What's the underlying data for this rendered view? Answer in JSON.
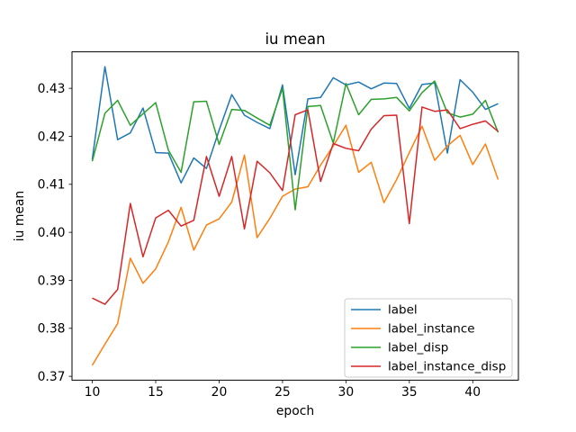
{
  "chart_data": {
    "type": "line",
    "title": "iu mean",
    "xlabel": "epoch",
    "ylabel": "iu mean",
    "background": "#ffffff",
    "grid": false,
    "legend_position": "lower right",
    "xlim": [
      8.4,
      43.6
    ],
    "ylim": [
      0.3692,
      0.4376
    ],
    "xticks": [
      10,
      15,
      20,
      25,
      30,
      35,
      40
    ],
    "yticks": [
      0.37,
      0.38,
      0.39,
      0.4,
      0.41,
      0.42,
      0.43
    ],
    "ytick_labels": [
      "0.37",
      "0.38",
      "0.39",
      "0.40",
      "0.41",
      "0.42",
      "0.43"
    ],
    "x": [
      10,
      11,
      12,
      13,
      14,
      15,
      16,
      17,
      18,
      19,
      20,
      21,
      22,
      23,
      24,
      25,
      26,
      27,
      28,
      29,
      30,
      31,
      32,
      33,
      34,
      35,
      36,
      37,
      38,
      39,
      40,
      41,
      42
    ],
    "series": [
      {
        "name": "label",
        "color": "#1f77b4",
        "values": [
          0.4152,
          0.4345,
          0.4193,
          0.4207,
          0.4259,
          0.4166,
          0.4165,
          0.4103,
          0.4155,
          0.4133,
          0.4213,
          0.4287,
          0.4244,
          0.4229,
          0.4216,
          0.4307,
          0.412,
          0.4278,
          0.4281,
          0.4322,
          0.4307,
          0.4313,
          0.4299,
          0.4311,
          0.431,
          0.4258,
          0.4308,
          0.4311,
          0.4165,
          0.4318,
          0.4292,
          0.4256,
          0.4268
        ]
      },
      {
        "name": "label_instance",
        "color": "#ff7f0e",
        "values": [
          0.3723,
          0.3767,
          0.381,
          0.3946,
          0.3894,
          0.3924,
          0.398,
          0.4052,
          0.3963,
          0.4015,
          0.4028,
          0.4063,
          0.4161,
          0.3989,
          0.4029,
          0.4075,
          0.409,
          0.4095,
          0.414,
          0.418,
          0.4223,
          0.4125,
          0.4146,
          0.4062,
          0.411,
          0.4166,
          0.4221,
          0.415,
          0.418,
          0.4202,
          0.4141,
          0.4184,
          0.411
        ]
      },
      {
        "name": "label_disp",
        "color": "#2ca02c",
        "values": [
          0.4148,
          0.4248,
          0.4275,
          0.4223,
          0.4247,
          0.427,
          0.4171,
          0.4125,
          0.4272,
          0.4273,
          0.4183,
          0.4256,
          0.4254,
          0.4238,
          0.4223,
          0.43,
          0.4047,
          0.4262,
          0.4264,
          0.4186,
          0.431,
          0.4245,
          0.4277,
          0.4278,
          0.4281,
          0.4253,
          0.4291,
          0.4315,
          0.4249,
          0.424,
          0.4246,
          0.4275,
          0.4208
        ]
      },
      {
        "name": "label_instance_disp",
        "color": "#d62728",
        "values": [
          0.3863,
          0.385,
          0.3881,
          0.406,
          0.3949,
          0.403,
          0.4046,
          0.4013,
          0.4025,
          0.4158,
          0.4075,
          0.4158,
          0.4007,
          0.4148,
          0.4124,
          0.4087,
          0.4245,
          0.4255,
          0.4106,
          0.4185,
          0.4175,
          0.417,
          0.4215,
          0.4243,
          0.4244,
          0.4018,
          0.4261,
          0.4252,
          0.4255,
          0.4216,
          0.4225,
          0.4232,
          0.421
        ]
      }
    ]
  }
}
